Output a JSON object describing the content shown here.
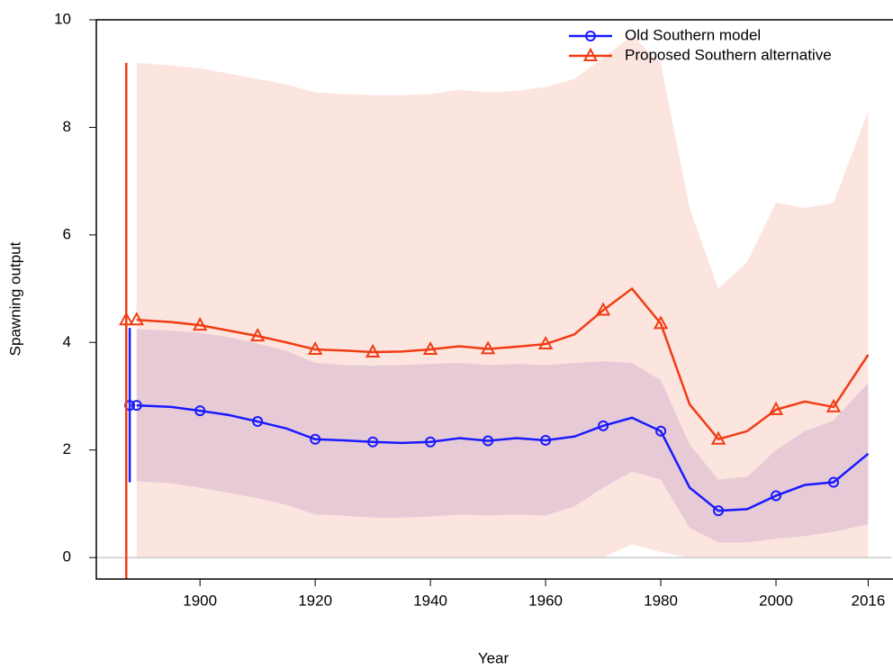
{
  "chart_data": {
    "type": "line",
    "xlabel": "Year",
    "ylabel": "Spawning output",
    "x": [
      1889,
      1895,
      1900,
      1905,
      1910,
      1915,
      1920,
      1925,
      1930,
      1935,
      1940,
      1945,
      1950,
      1955,
      1960,
      1965,
      1970,
      1975,
      1980,
      1985,
      1990,
      1995,
      2000,
      2005,
      2010,
      2016
    ],
    "series": [
      {
        "name": "Old Southern model",
        "color": "#1a1aff",
        "marker": "circle",
        "band_color": "rgba(90,70,200,0.2)",
        "values": [
          2.83,
          2.8,
          2.73,
          2.65,
          2.53,
          2.4,
          2.2,
          2.18,
          2.15,
          2.13,
          2.15,
          2.22,
          2.17,
          2.22,
          2.18,
          2.25,
          2.45,
          2.6,
          2.35,
          1.3,
          0.87,
          0.9,
          1.15,
          1.35,
          1.4,
          1.93
        ],
        "lower": [
          1.42,
          1.38,
          1.3,
          1.2,
          1.1,
          0.98,
          0.8,
          0.78,
          0.74,
          0.74,
          0.76,
          0.8,
          0.78,
          0.8,
          0.78,
          0.95,
          1.3,
          1.6,
          1.45,
          0.55,
          0.28,
          0.28,
          0.35,
          0.4,
          0.48,
          0.62
        ],
        "upper": [
          4.25,
          4.22,
          4.18,
          4.1,
          3.98,
          3.85,
          3.62,
          3.58,
          3.57,
          3.58,
          3.6,
          3.62,
          3.58,
          3.6,
          3.58,
          3.62,
          3.65,
          3.62,
          3.3,
          2.1,
          1.45,
          1.5,
          2.0,
          2.35,
          2.55,
          3.25
        ],
        "virgin": {
          "x": 1887.8,
          "value": 2.83,
          "lower": 1.4,
          "upper": 4.27
        }
      },
      {
        "name": "Proposed Southern alternative",
        "color": "#f03c14",
        "marker": "triangle",
        "band_color": "rgba(250,170,150,0.3)",
        "values": [
          4.42,
          4.38,
          4.32,
          4.22,
          4.12,
          4.0,
          3.87,
          3.85,
          3.82,
          3.83,
          3.87,
          3.93,
          3.88,
          3.92,
          3.97,
          4.15,
          4.6,
          5.0,
          4.35,
          2.85,
          2.2,
          2.35,
          2.75,
          2.9,
          2.8,
          3.77
        ],
        "lower": [
          0,
          0,
          0,
          0,
          0,
          0,
          0,
          0,
          0,
          0,
          0,
          0,
          0,
          0,
          0,
          0,
          0,
          0.25,
          0.1,
          0,
          0,
          0,
          0,
          0,
          0,
          0
        ],
        "upper": [
          9.2,
          9.15,
          9.1,
          9.0,
          8.9,
          8.8,
          8.65,
          8.62,
          8.6,
          8.6,
          8.62,
          8.7,
          8.65,
          8.68,
          8.75,
          8.9,
          9.3,
          9.7,
          9.2,
          6.5,
          5.0,
          5.5,
          6.6,
          6.5,
          6.6,
          8.3
        ],
        "virgin": {
          "x": 1887.2,
          "value": 4.42,
          "lower": -0.4,
          "upper": 9.2
        }
      }
    ],
    "xlim": [
      1882,
      2020
    ],
    "ylim": [
      -0.4,
      10
    ],
    "xticks": [
      1900,
      1920,
      1940,
      1960,
      1980,
      2000,
      2016
    ],
    "yticks": [
      0,
      2,
      4,
      6,
      8,
      10
    ],
    "hline": 0,
    "legend": "top-right"
  }
}
